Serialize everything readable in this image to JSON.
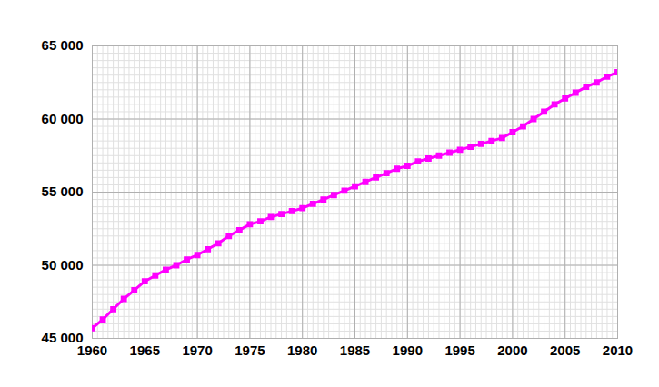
{
  "chart_data": {
    "type": "line",
    "x": [
      1960,
      1961,
      1962,
      1963,
      1964,
      1965,
      1966,
      1967,
      1968,
      1969,
      1970,
      1971,
      1972,
      1973,
      1974,
      1975,
      1976,
      1977,
      1978,
      1979,
      1980,
      1981,
      1982,
      1983,
      1984,
      1985,
      1986,
      1987,
      1988,
      1989,
      1990,
      1991,
      1992,
      1993,
      1994,
      1995,
      1996,
      1997,
      1998,
      1999,
      2000,
      2001,
      2002,
      2003,
      2004,
      2005,
      2006,
      2007,
      2008,
      2009,
      2010
    ],
    "values": [
      45700,
      46300,
      47000,
      47700,
      48300,
      48900,
      49300,
      49700,
      50000,
      50400,
      50700,
      51100,
      51500,
      52000,
      52400,
      52800,
      53000,
      53300,
      53500,
      53700,
      53900,
      54200,
      54500,
      54800,
      55100,
      55400,
      55700,
      56000,
      56300,
      56600,
      56800,
      57100,
      57300,
      57500,
      57700,
      57900,
      58100,
      58300,
      58500,
      58700,
      59100,
      59500,
      60000,
      60500,
      61000,
      61400,
      61800,
      62200,
      62500,
      62900,
      63200
    ],
    "color": "#ff00ff",
    "marker": "square",
    "xlim": [
      1960,
      2010
    ],
    "xticks": [
      1960,
      1965,
      1970,
      1975,
      1980,
      1985,
      1990,
      1995,
      2000,
      2005,
      2010
    ],
    "ylim": [
      45000,
      65000
    ],
    "yticks": [
      {
        "value": 45000,
        "label": "45 000"
      },
      {
        "value": 50000,
        "label": "50 000"
      },
      {
        "value": 55000,
        "label": "55 000"
      },
      {
        "value": 60000,
        "label": "60 000"
      },
      {
        "value": 65000,
        "label": "65 000"
      }
    ],
    "grid": true
  }
}
